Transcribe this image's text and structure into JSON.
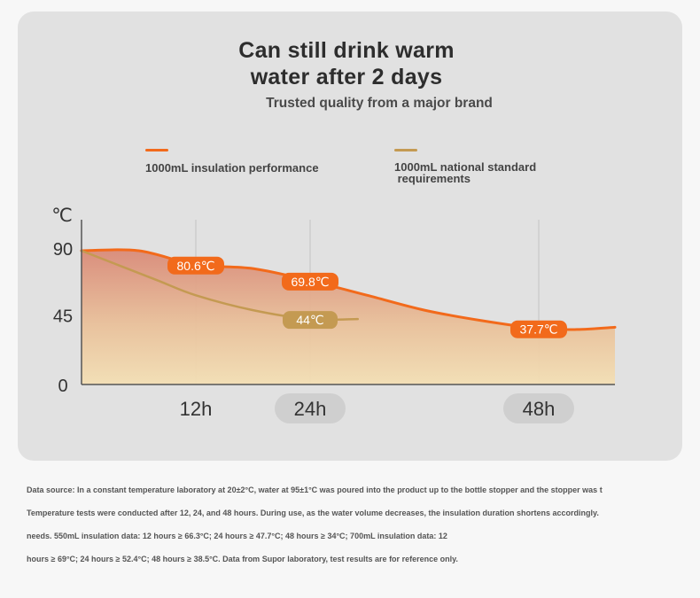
{
  "header": {
    "title_line1": "Can still drink warm",
    "title_line2": "water after 2 days",
    "subtitle": "Trusted quality from a major brand"
  },
  "legend": [
    {
      "label": "1000mL insulation performance",
      "color": "#f26a1b"
    },
    {
      "label": "1000mL national standard\n requirements",
      "color": "#c49a52"
    }
  ],
  "chart_data": {
    "type": "line",
    "y_unit": "℃",
    "y_ticks": [
      "90",
      "45",
      "0"
    ],
    "y_tick_values": [
      90,
      45,
      0
    ],
    "x_ticks": [
      "12h",
      "24h",
      "48h"
    ],
    "x_tick_values": [
      12,
      24,
      48
    ],
    "x_range": [
      0,
      56
    ],
    "ylim": [
      0,
      90
    ],
    "grid": "vertical",
    "series": [
      {
        "name": "1000mL insulation performance",
        "color": "#f26a1b",
        "x": [
          0,
          6,
          12,
          18,
          24,
          30,
          36,
          42,
          48,
          52,
          56
        ],
        "y": [
          90,
          90,
          80.6,
          78,
          69.8,
          60,
          50,
          43,
          37.7,
          37,
          38.5
        ],
        "labels": [
          {
            "x": 12,
            "y": 80.6,
            "text": "80.6℃"
          },
          {
            "x": 24,
            "y": 69.8,
            "text": "69.8℃"
          },
          {
            "x": 48,
            "y": 37.7,
            "text": "37.7℃"
          }
        ]
      },
      {
        "name": "1000mL national standard requirements",
        "color": "#c49a52",
        "x": [
          0,
          4,
          8,
          12,
          18,
          24,
          29
        ],
        "y": [
          90,
          80,
          70,
          60,
          50,
          44,
          44
        ],
        "labels": [
          {
            "x": 24,
            "y": 44,
            "text": "44℃"
          }
        ]
      }
    ]
  },
  "footnote": [
    "Data source: In a constant temperature laboratory at 20±2°C, water at 95±1°C was poured into the product up to the bottle stopper and the stopper was t",
    " Temperature tests were conducted after 12, 24, and 48 hours. During use, as the water volume decreases, the insulation duration shortens accordingly.",
    " needs. 550mL insulation data: 12 hours ≥ 66.3°C; 24 hours ≥ 47.7°C; 48 hours ≥ 34°C; 700mL insulation data: 12",
    "hours ≥ 69°C; 24 hours ≥ 52.4°C; 48 hours ≥ 38.5°C. Data from Supor laboratory, test results are for reference only."
  ]
}
